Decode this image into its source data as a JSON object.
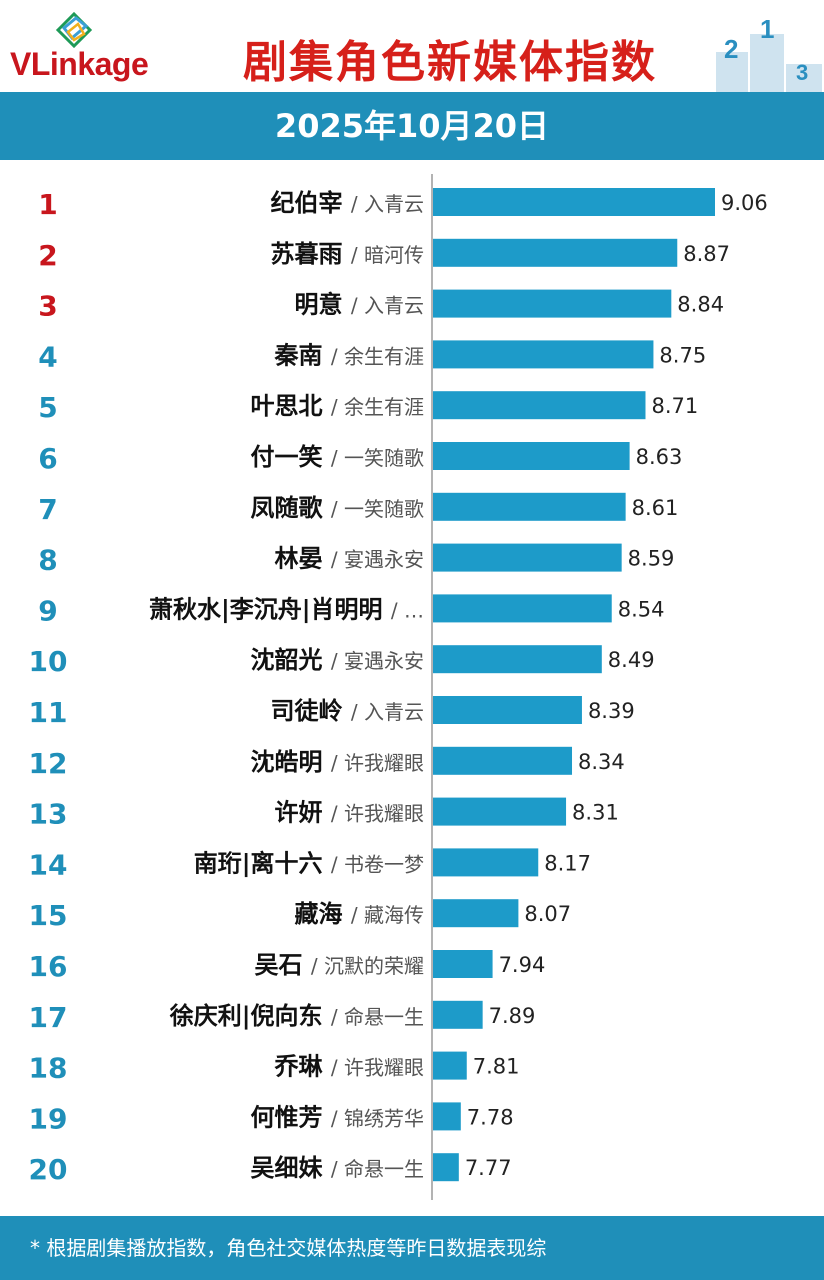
{
  "header": {
    "logo_text_v": "V",
    "logo_text_rest": "Linkage",
    "title": "剧集角色新媒体指数",
    "podium_numbers": [
      "2",
      "1",
      "3"
    ]
  },
  "date": "2025年10月20日",
  "footer": {
    "note": "* 根据剧集播放指数，角色社交媒体热度等昨日数据表现综"
  },
  "colors": {
    "accent": "#1f8fb9",
    "bar": "#1d9bc9",
    "title_red": "#d6201a",
    "rank_top3": "#c8161d",
    "rank_other": "#1f8fb9"
  },
  "chart_data": {
    "type": "bar",
    "orientation": "horizontal",
    "title": "剧集角色新媒体指数",
    "ranks": [
      "1",
      "2",
      "3",
      "4",
      "5",
      "6",
      "7",
      "8",
      "9",
      "10",
      "11",
      "12",
      "13",
      "14",
      "15",
      "16",
      "17",
      "18",
      "19",
      "20"
    ],
    "characters": [
      "纪伯宰",
      "苏暮雨",
      "明意",
      "秦南",
      "叶思北",
      "付一笑",
      "凤随歌",
      "林晏",
      "萧秋水|李沉舟|肖明明",
      "沈韶光",
      "司徒岭",
      "沈皓明",
      "许妍",
      "南珩|离十六",
      "藏海",
      "吴石",
      "徐庆利|倪向东",
      "乔琳",
      "何惟芳",
      "吴细妹"
    ],
    "dramas": [
      "/ 入青云",
      "/ 暗河传",
      "/ 入青云",
      "/ 余生有涯",
      "/ 余生有涯",
      "/ 一笑随歌",
      "/ 一笑随歌",
      "/ 宴遇永安",
      "/ …",
      "/ 宴遇永安",
      "/ 入青云",
      "/ 许我耀眼",
      "/ 许我耀眼",
      "/ 书卷一梦",
      "/ 藏海传",
      "/ 沉默的荣耀",
      "/ 命悬一生",
      "/ 许我耀眼",
      "/ 锦绣芳华",
      "/ 命悬一生"
    ],
    "value_labels": [
      "9.06",
      "8.87",
      "8.84",
      "8.75",
      "8.71",
      "8.63",
      "8.61",
      "8.59",
      "8.54",
      "8.49",
      "8.39",
      "8.34",
      "8.31",
      "8.17",
      "8.07",
      "7.94",
      "7.89",
      "7.81",
      "7.78",
      "7.77"
    ],
    "values": [
      9.06,
      8.87,
      8.84,
      8.75,
      8.71,
      8.63,
      8.61,
      8.59,
      8.54,
      8.49,
      8.39,
      8.34,
      8.31,
      8.17,
      8.07,
      7.94,
      7.89,
      7.81,
      7.78,
      7.77
    ],
    "xlim": [
      7.64,
      9.06
    ],
    "grid": false,
    "legend": "none"
  }
}
